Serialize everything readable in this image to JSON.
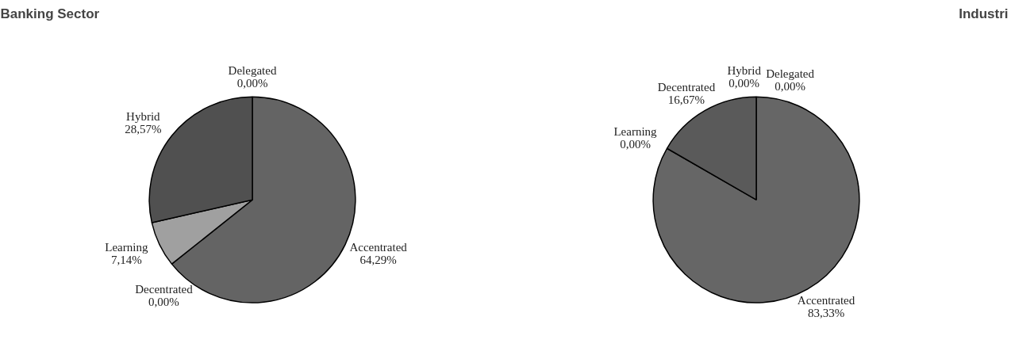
{
  "chart_data": [
    {
      "type": "pie",
      "title": "Banking Sector",
      "categories": [
        "Accentrated",
        "Decentrated",
        "Learning",
        "Hybrid",
        "Delegated"
      ],
      "values": [
        64.29,
        0,
        7.14,
        28.57,
        0
      ],
      "value_labels": [
        "64,29%",
        "0,00%",
        "7,14%",
        "28,57%",
        "0,00%"
      ],
      "colors": [
        "#646464",
        "#646464",
        "#a0a0a0",
        "#505050",
        "#505050"
      ],
      "legend": false
    },
    {
      "type": "pie",
      "title": "Industri",
      "categories": [
        "Accentrated",
        "Learning",
        "Decentrated",
        "Hybrid",
        "Delegated"
      ],
      "values": [
        83.33,
        0,
        16.67,
        0,
        0
      ],
      "value_labels": [
        "83,33%",
        "0,00%",
        "16,67%",
        "0,00%",
        "0,00%"
      ],
      "colors": [
        "#666666",
        "#5a5a5a",
        "#5a5a5a",
        "#5a5a5a",
        "#5a5a5a"
      ],
      "legend": false
    }
  ]
}
